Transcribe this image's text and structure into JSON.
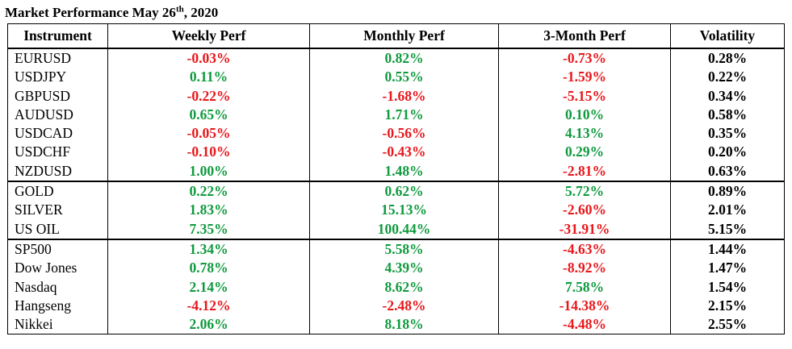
{
  "title": {
    "prefix": "Market Performance May 26",
    "suffix": "th",
    "year": ", 2020"
  },
  "headers": [
    "Instrument",
    "Weekly Perf",
    "Monthly Perf",
    "3-Month Perf",
    "Volatility"
  ],
  "colors": {
    "positive": "#109a3e",
    "negative": "#e8171b",
    "neutral": "#000000"
  },
  "groups": [
    {
      "rows": [
        {
          "instrument": "EURUSD",
          "weekly": "-0.03%",
          "monthly": "0.82%",
          "three_month": "-0.73%",
          "volatility": "0.28%"
        },
        {
          "instrument": "USDJPY",
          "weekly": "0.11%",
          "monthly": "0.55%",
          "three_month": "-1.59%",
          "volatility": "0.22%"
        },
        {
          "instrument": "GBPUSD",
          "weekly": "-0.22%",
          "monthly": "-1.68%",
          "three_month": "-5.15%",
          "volatility": "0.34%"
        },
        {
          "instrument": "AUDUSD",
          "weekly": "0.65%",
          "monthly": "1.71%",
          "three_month": "0.10%",
          "volatility": "0.58%"
        },
        {
          "instrument": "USDCAD",
          "weekly": "-0.05%",
          "monthly": "-0.56%",
          "three_month": "4.13%",
          "volatility": "0.35%"
        },
        {
          "instrument": "USDCHF",
          "weekly": "-0.10%",
          "monthly": "-0.43%",
          "three_month": "0.29%",
          "volatility": "0.20%"
        },
        {
          "instrument": "NZDUSD",
          "weekly": "1.00%",
          "monthly": "1.48%",
          "three_month": "-2.81%",
          "volatility": "0.63%"
        }
      ]
    },
    {
      "rows": [
        {
          "instrument": "GOLD",
          "weekly": "0.22%",
          "monthly": "0.62%",
          "three_month": "5.72%",
          "volatility": "0.89%"
        },
        {
          "instrument": "SILVER",
          "weekly": "1.83%",
          "monthly": "15.13%",
          "three_month": "-2.60%",
          "volatility": "2.01%"
        },
        {
          "instrument": "US OIL",
          "weekly": "7.35%",
          "monthly": "100.44%",
          "three_month": "-31.91%",
          "volatility": "5.15%"
        }
      ]
    },
    {
      "rows": [
        {
          "instrument": "SP500",
          "weekly": "1.34%",
          "monthly": "5.58%",
          "three_month": "-4.63%",
          "volatility": "1.44%"
        },
        {
          "instrument": "Dow Jones",
          "weekly": "0.78%",
          "monthly": "4.39%",
          "three_month": "-8.92%",
          "volatility": "1.47%"
        },
        {
          "instrument": "Nasdaq",
          "weekly": "2.14%",
          "monthly": "8.62%",
          "three_month": "7.58%",
          "volatility": "1.54%"
        },
        {
          "instrument": "Hangseng",
          "weekly": "-4.12%",
          "monthly": "-2.48%",
          "three_month": "-14.38%",
          "volatility": "2.15%"
        },
        {
          "instrument": "Nikkei",
          "weekly": "2.06%",
          "monthly": "8.18%",
          "three_month": "-4.48%",
          "volatility": "2.55%"
        }
      ]
    }
  ]
}
